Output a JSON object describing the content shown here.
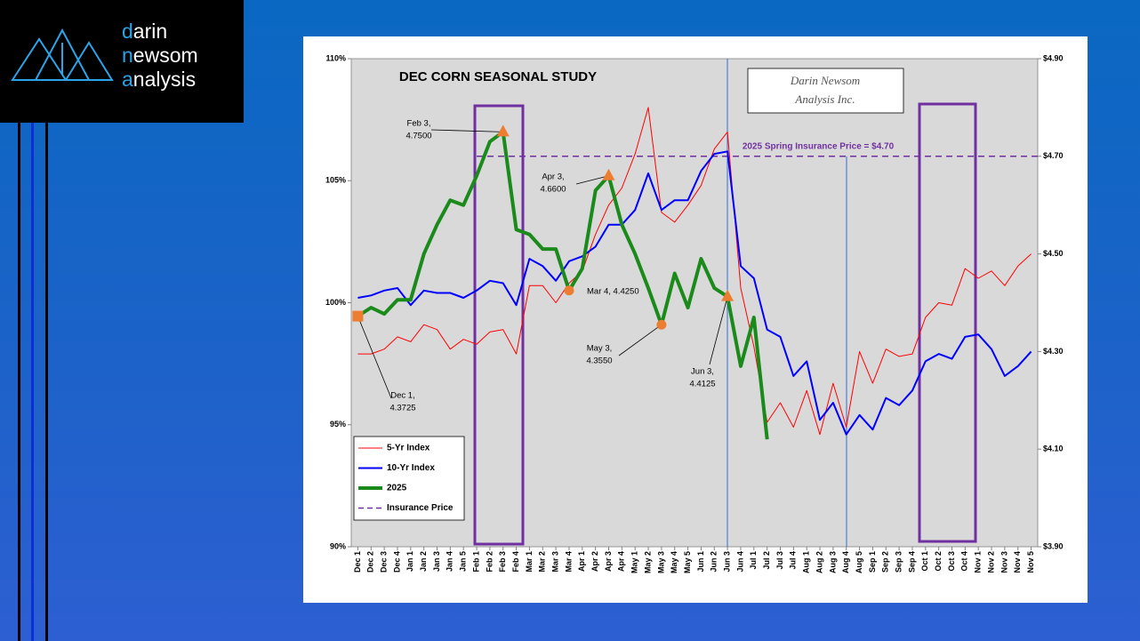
{
  "logo": [
    "darin",
    "newsom",
    "analysis"
  ],
  "chart_data": {
    "type": "line",
    "title": "DEC CORN SEASONAL STUDY",
    "watermark": [
      "Darin Newsom",
      "Analysis Inc."
    ],
    "categories": [
      "Dec 1",
      "Dec 2",
      "Dec 3",
      "Dec 4",
      "Jan 1",
      "Jan 2",
      "Jan 3",
      "Jan 4",
      "Jan 5",
      "Feb 1",
      "Feb 2",
      "Feb 3",
      "Feb 4",
      "Mar 1",
      "Mar 2",
      "Mar 3",
      "Mar 4",
      "Apr 1",
      "Apr 2",
      "Apr 3",
      "Apr 4",
      "May 1",
      "May 2",
      "May 3",
      "May 4",
      "May 5",
      "Jun 1",
      "Jun 2",
      "Jun 3",
      "Jun 4",
      "Jul 1",
      "Jul 2",
      "Jul 3",
      "Jul 4",
      "Aug 1",
      "Aug 2",
      "Aug 3",
      "Aug 4",
      "Aug 5",
      "Sep 1",
      "Sep 2",
      "Sep 3",
      "Sep 4",
      "Oct 1",
      "Oct 2",
      "Oct 3",
      "Oct 4",
      "Nov 1",
      "Nov 2",
      "Nov 3",
      "Nov 4",
      "Nov 5"
    ],
    "series": [
      {
        "name": "5-Yr Index",
        "color": "#ff0000",
        "width": 1,
        "values": [
          97.9,
          97.9,
          98.1,
          98.6,
          98.4,
          99.1,
          98.9,
          98.1,
          98.5,
          98.3,
          98.8,
          98.9,
          97.9,
          100.7,
          100.7,
          100.0,
          100.8,
          101.3,
          102.8,
          104.0,
          104.7,
          106.1,
          108.0,
          103.7,
          103.3,
          104.0,
          104.8,
          106.3,
          107.0,
          100.6,
          98.2,
          95.1,
          95.9,
          94.9,
          96.4,
          94.6,
          96.7,
          94.9,
          98.0,
          96.7,
          98.1,
          97.8,
          97.9,
          99.4,
          100.0,
          99.9,
          101.4,
          101.0,
          101.3,
          100.7,
          101.5,
          102.0
        ]
      },
      {
        "name": "10-Yr Index",
        "color": "#0000ff",
        "width": 2,
        "values": [
          100.2,
          100.3,
          100.5,
          100.6,
          99.9,
          100.5,
          100.4,
          100.4,
          100.2,
          100.5,
          100.9,
          100.8,
          99.9,
          101.8,
          101.5,
          100.9,
          101.7,
          101.9,
          102.3,
          103.2,
          103.2,
          103.8,
          105.3,
          103.8,
          104.2,
          104.2,
          105.4,
          106.1,
          106.2,
          101.5,
          101.0,
          98.9,
          98.6,
          97.0,
          97.6,
          95.2,
          95.9,
          94.6,
          95.4,
          94.8,
          96.1,
          95.8,
          96.4,
          97.6,
          97.9,
          97.7,
          98.6,
          98.7,
          98.1,
          97.0,
          97.4,
          98.0
        ]
      },
      {
        "name": "2025",
        "color": "#1a8a1a",
        "width": 4,
        "axis": "y2",
        "values": [
          4.3725,
          4.39,
          4.377,
          4.406,
          4.406,
          4.5,
          4.56,
          4.61,
          4.6,
          4.66,
          4.73,
          4.75,
          4.55,
          4.54,
          4.51,
          4.51,
          4.425,
          4.47,
          4.63,
          4.66,
          4.56,
          4.5,
          4.43,
          4.355,
          4.46,
          4.39,
          4.49,
          4.43,
          4.4125,
          4.27,
          4.37,
          4.12,
          null,
          null,
          null,
          null,
          null,
          null,
          null,
          null,
          null,
          null,
          null,
          null,
          null,
          null,
          null,
          null,
          null,
          null,
          null,
          null
        ]
      }
    ],
    "reference_line": {
      "name": "Insurance Price",
      "value": 4.7,
      "axis": "y2",
      "color": "#7030a0",
      "label": "2025 Spring Insurance Price = $4.70"
    },
    "annotations": [
      {
        "text": [
          "Dec 1,",
          "4.3725"
        ],
        "category": "Dec 1",
        "marker": "square"
      },
      {
        "text": [
          "Feb 3,",
          "4.7500"
        ],
        "category": "Feb 3",
        "marker": "triangle"
      },
      {
        "text": [
          "Mar 4, 4.4250"
        ],
        "category": "Mar 4",
        "marker": "circle"
      },
      {
        "text": [
          "Apr 3,",
          "4.6600"
        ],
        "category": "Apr 3",
        "marker": "triangle"
      },
      {
        "text": [
          "May 3,",
          "4.3550"
        ],
        "category": "May 3",
        "marker": "circle"
      },
      {
        "text": [
          "Jun 3,",
          "4.4125"
        ],
        "category": "Jun 3",
        "marker": "triangle"
      }
    ],
    "marker_color": "#ed7d31",
    "ylim": [
      90,
      110
    ],
    "yticks": [
      {
        "value": 90,
        "label": "90%"
      },
      {
        "value": 95,
        "label": "95%"
      },
      {
        "value": 100,
        "label": "100%"
      },
      {
        "value": 105,
        "label": "105%"
      },
      {
        "value": 110,
        "label": "110%"
      }
    ],
    "y2lim": [
      3.9,
      4.9
    ],
    "y2ticks": [
      {
        "value": 3.9,
        "label": "$3.90"
      },
      {
        "value": 4.1,
        "label": "$4.10"
      },
      {
        "value": 4.3,
        "label": "$4.30"
      },
      {
        "value": 4.5,
        "label": "$4.50"
      },
      {
        "value": 4.7,
        "label": "$4.70"
      },
      {
        "value": 4.9,
        "label": "$4.90"
      }
    ],
    "legend": "lower left"
  }
}
